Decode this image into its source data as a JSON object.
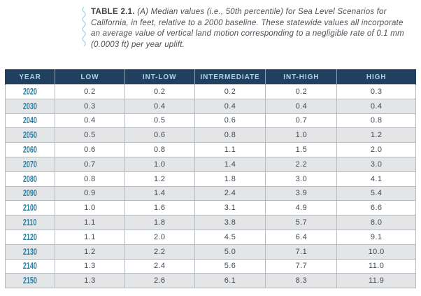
{
  "caption": {
    "label": "TABLE 2.1.",
    "text": " (A) Median values (i.e., 50th percentile) for Sea Level Scenarios for California, in feet, relative to a 2000 baseline. These statewide values all incorporate an average value of vertical land motion corresponding to a negligible rate of 0.1 mm (0.0003 ft) per year uplift."
  },
  "table": {
    "headers": [
      "YEAR",
      "LOW",
      "INT-LOW",
      "INTERMEDIATE",
      "INT-HIGH",
      "HIGH"
    ],
    "rows": [
      {
        "year": "2020",
        "values": [
          "0.2",
          "0.2",
          "0.2",
          "0.2",
          "0.3"
        ]
      },
      {
        "year": "2030",
        "values": [
          "0.3",
          "0.4",
          "0.4",
          "0.4",
          "0.4"
        ]
      },
      {
        "year": "2040",
        "values": [
          "0.4",
          "0.5",
          "0.6",
          "0.7",
          "0.8"
        ]
      },
      {
        "year": "2050",
        "values": [
          "0.5",
          "0.6",
          "0.8",
          "1.0",
          "1.2"
        ]
      },
      {
        "year": "2060",
        "values": [
          "0.6",
          "0.8",
          "1.1",
          "1.5",
          "2.0"
        ]
      },
      {
        "year": "2070",
        "values": [
          "0.7",
          "1.0",
          "1.4",
          "2.2",
          "3.0"
        ]
      },
      {
        "year": "2080",
        "values": [
          "0.8",
          "1.2",
          "1.8",
          "3.0",
          "4.1"
        ]
      },
      {
        "year": "2090",
        "values": [
          "0.9",
          "1.4",
          "2.4",
          "3.9",
          "5.4"
        ]
      },
      {
        "year": "2100",
        "values": [
          "1.0",
          "1.6",
          "3.1",
          "4.9",
          "6.6"
        ]
      },
      {
        "year": "2110",
        "values": [
          "1.1",
          "1.8",
          "3.8",
          "5.7",
          "8.0"
        ]
      },
      {
        "year": "2120",
        "values": [
          "1.1",
          "2.0",
          "4.5",
          "6.4",
          "9.1"
        ]
      },
      {
        "year": "2130",
        "values": [
          "1.2",
          "2.2",
          "5.0",
          "7.1",
          "10.0"
        ]
      },
      {
        "year": "2140",
        "values": [
          "1.3",
          "2.4",
          "5.6",
          "7.7",
          "11.0"
        ]
      },
      {
        "year": "2150",
        "values": [
          "1.3",
          "2.6",
          "6.1",
          "8.3",
          "11.9"
        ]
      }
    ]
  },
  "colors": {
    "header_bg": "#213f5e",
    "header_text": "#abd3e6",
    "year_text": "#2f7fa0",
    "cell_text": "#43494f",
    "stripe_bg": "#e4e5e7",
    "border": "#b7bbbf",
    "squiggle": "#a9dbe2",
    "caption_text": "#4a5056"
  }
}
